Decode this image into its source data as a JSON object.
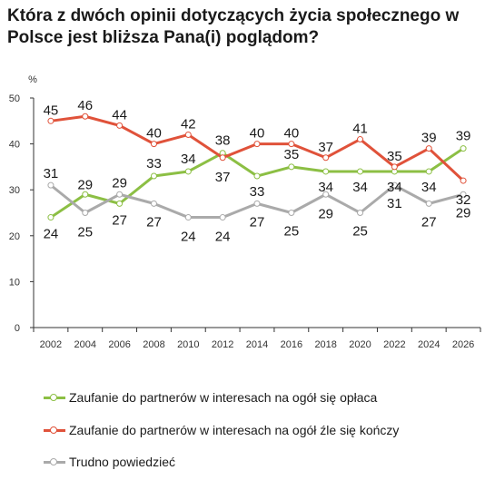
{
  "title": "Która z dwóch opinii dotyczących życia społecznego w Polsce jest bliższa Pana(i) poglądom?",
  "colors": {
    "green": "#8cbf44",
    "red": "#e0523a",
    "gray": "#aaaaaa",
    "axis": "#333333"
  },
  "chart_data": {
    "type": "line",
    "title": "Która z dwóch opinii dotyczących życia społecznego w Polsce jest bliższa Pana(i) poglądom?",
    "ylabel": "%",
    "ylim": [
      0,
      50
    ],
    "yticks": [
      0,
      10,
      20,
      30,
      40,
      50
    ],
    "grid": false,
    "legend": "bottom",
    "x": [
      "2002",
      "2004",
      "2006",
      "2008",
      "2010",
      "2012",
      "2014",
      "2016",
      "2018",
      "2020",
      "2022",
      "2024",
      "2026"
    ],
    "series": [
      {
        "name": "Zaufanie do partnerów w interesach na ogół się opłaca",
        "color": "#8cbf44",
        "values": [
          24,
          29,
          27,
          33,
          34,
          38,
          33,
          35,
          34,
          34,
          34,
          34,
          39
        ]
      },
      {
        "name": "Zaufanie do partnerów w interesach na ogół źle się kończy",
        "color": "#e0523a",
        "values": [
          45,
          46,
          44,
          40,
          42,
          37,
          40,
          40,
          37,
          41,
          35,
          39,
          32
        ]
      },
      {
        "name": "Trudno powiedzieć",
        "color": "#aaaaaa",
        "values": [
          31,
          25,
          29,
          27,
          24,
          24,
          27,
          25,
          29,
          25,
          31,
          27,
          29
        ]
      }
    ],
    "data_labels": {
      "green": [
        "24",
        "29",
        "27",
        "33",
        "34",
        "38",
        "33",
        "35",
        "34",
        "34",
        "34",
        "34",
        "39"
      ],
      "red": [
        "45",
        "46",
        "44",
        "40",
        "42",
        "37",
        "40",
        "40",
        "37",
        "41",
        "35",
        "39",
        "32"
      ],
      "gray": [
        "31",
        "25",
        "29",
        "27",
        "24",
        "24",
        "27",
        "25",
        "29",
        "25",
        "31",
        "27",
        "29"
      ]
    }
  },
  "legend": [
    {
      "label": "Zaufanie do partnerów w interesach na ogół się opłaca",
      "color": "#8cbf44"
    },
    {
      "label": "Zaufanie do partnerów w interesach na ogół źle się kończy",
      "color": "#e0523a"
    },
    {
      "label": "Trudno powiedzieć",
      "color": "#aaaaaa"
    }
  ]
}
